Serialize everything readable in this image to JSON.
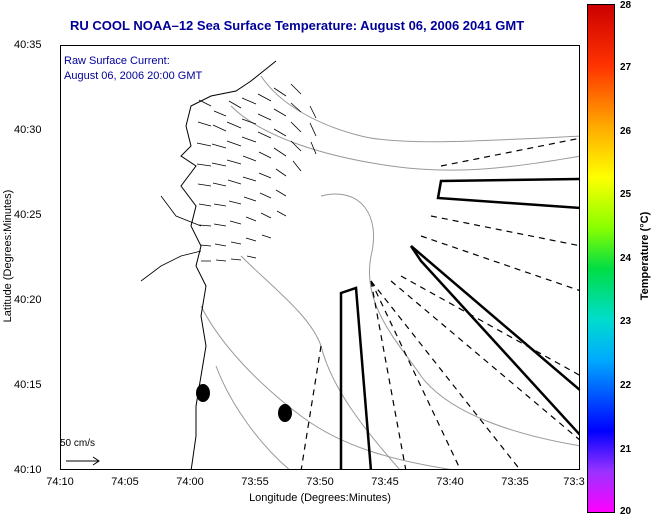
{
  "chart_data": {
    "type": "map",
    "title": "RU COOL  NOAA–12  Sea Surface Temperature:  August 06, 2006 2041 GMT",
    "xlabel": "Longitude (Degrees:Minutes)",
    "ylabel": "Latitude (Degrees:Minutes)",
    "x_ticks": [
      "74:10",
      "74:05",
      "74:00",
      "73:55",
      "73:50",
      "73:45",
      "73:40",
      "73:35",
      "73:3"
    ],
    "y_ticks": [
      "40:35",
      "40:30",
      "40:25",
      "40:20",
      "40:15",
      "40:10"
    ],
    "annotation_line1": "Raw Surface Current:",
    "annotation_line2": "August 06, 2006 20:00 GMT",
    "scale_label": "50 cm/s",
    "colorbar": {
      "label": "Temperature (°C)",
      "min": 20,
      "max": 28,
      "ticks": [
        "28",
        "27",
        "26",
        "25",
        "24",
        "23",
        "22",
        "21",
        "20"
      ]
    }
  }
}
